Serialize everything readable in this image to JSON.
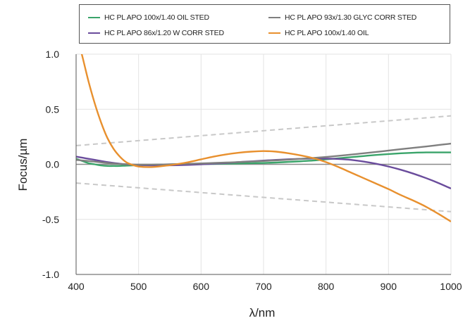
{
  "chart_data": {
    "type": "line",
    "title": "",
    "xlabel": "λ/nm",
    "ylabel": "Focus/µm",
    "xlim": [
      400,
      1000
    ],
    "ylim": [
      -1.0,
      1.0
    ],
    "xticks": [
      "400",
      "500",
      "600",
      "700",
      "800",
      "900",
      "1000"
    ],
    "yticks": [
      "1.0",
      "0.5",
      "0.0",
      "-0.5",
      "-1.0"
    ],
    "grid": true,
    "legend_position": "top",
    "x": [
      400,
      410,
      420,
      430,
      440,
      450,
      460,
      470,
      480,
      490,
      500,
      520,
      540,
      560,
      580,
      600,
      620,
      640,
      660,
      680,
      700,
      720,
      740,
      760,
      780,
      800,
      820,
      840,
      860,
      880,
      900,
      920,
      940,
      960,
      980,
      1000
    ],
    "series": [
      {
        "name": "HC PL APO 100x/1.40 OIL STED",
        "color": "#3aa46a",
        "values": [
          0.05,
          0.03,
          0.01,
          0.0,
          -0.01,
          -0.015,
          -0.015,
          -0.015,
          -0.012,
          -0.01,
          -0.008,
          -0.005,
          -0.002,
          0.0,
          0.0,
          0.002,
          0.004,
          0.006,
          0.008,
          0.01,
          0.012,
          0.016,
          0.022,
          0.028,
          0.035,
          0.045,
          0.055,
          0.065,
          0.075,
          0.085,
          0.093,
          0.1,
          0.105,
          0.108,
          0.108,
          0.108
        ]
      },
      {
        "name": "HC PL APO 86x/1.20 W CORR STED",
        "color": "#6a4c9c",
        "values": [
          0.07,
          0.06,
          0.05,
          0.04,
          0.03,
          0.02,
          0.012,
          0.005,
          0.0,
          -0.004,
          -0.007,
          -0.01,
          -0.01,
          -0.008,
          -0.005,
          0.0,
          0.006,
          0.012,
          0.02,
          0.027,
          0.034,
          0.04,
          0.046,
          0.05,
          0.052,
          0.052,
          0.048,
          0.04,
          0.025,
          0.005,
          -0.02,
          -0.05,
          -0.085,
          -0.125,
          -0.17,
          -0.22
        ]
      },
      {
        "name": "HC PL APO 93x/1.30 GLYC CORR STED",
        "color": "#7f7f7f",
        "values": [
          0.04,
          0.035,
          0.03,
          0.024,
          0.018,
          0.012,
          0.007,
          0.003,
          0.0,
          -0.002,
          -0.003,
          -0.003,
          -0.001,
          0.002,
          0.005,
          0.008,
          0.012,
          0.016,
          0.02,
          0.025,
          0.03,
          0.036,
          0.042,
          0.05,
          0.058,
          0.067,
          0.077,
          0.088,
          0.1,
          0.112,
          0.125,
          0.138,
          0.15,
          0.162,
          0.175,
          0.188
        ]
      },
      {
        "name": "HC PL APO 100x/1.40 OIL",
        "color": "#e8902e",
        "values": [
          1.2,
          0.98,
          0.75,
          0.55,
          0.38,
          0.24,
          0.14,
          0.07,
          0.02,
          -0.005,
          -0.02,
          -0.025,
          -0.015,
          0.0,
          0.02,
          0.045,
          0.07,
          0.09,
          0.105,
          0.115,
          0.12,
          0.115,
          0.1,
          0.08,
          0.055,
          0.02,
          -0.025,
          -0.075,
          -0.125,
          -0.175,
          -0.225,
          -0.28,
          -0.33,
          -0.385,
          -0.45,
          -0.52
        ]
      }
    ],
    "reference_lines": [
      {
        "label": "",
        "color": "#c8c8c8",
        "style": "dashed",
        "x": [
          400,
          1000
        ],
        "values": [
          0.17,
          0.44
        ]
      },
      {
        "label": "",
        "color": "#c8c8c8",
        "style": "dashed",
        "x": [
          400,
          1000
        ],
        "values": [
          -0.17,
          -0.43
        ]
      }
    ]
  }
}
